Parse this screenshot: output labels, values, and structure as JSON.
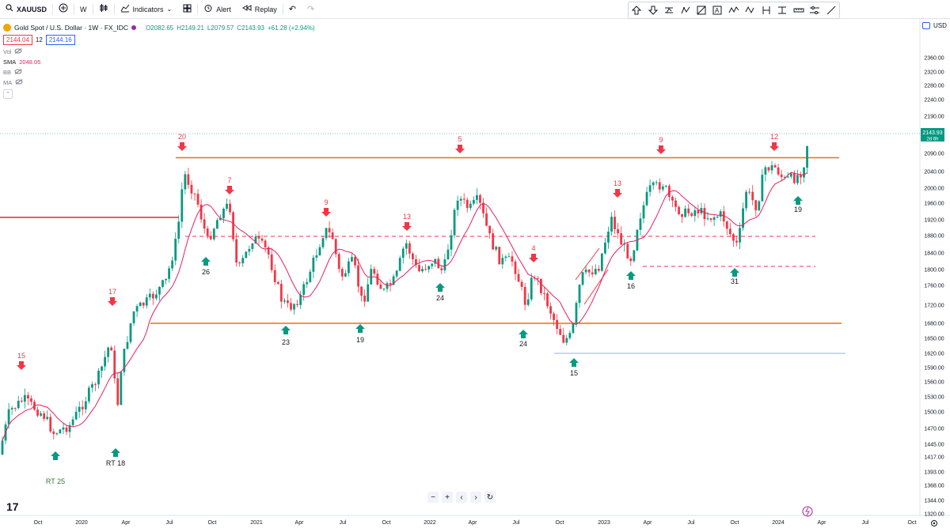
{
  "toolbar": {
    "symbol": "XAUUSD",
    "interval": "W",
    "indicators_label": "Indicators",
    "alert_label": "Alert",
    "replay_label": "Replay"
  },
  "legend": {
    "title": "Gold Spot / U.S. Dollar · 1W · FX_IDC",
    "open": "O2082.65",
    "high": "H2149.21",
    "low": "L2079.57",
    "close": "C2143.93",
    "change": "+61.28 (+2.94%)",
    "bid": "2144.04",
    "spread": "12",
    "ask": "2144.16",
    "indicators": [
      {
        "name": "Vol",
        "value": ""
      },
      {
        "name": "SMA",
        "value": "2048.05"
      },
      {
        "name": "BB",
        "value": ""
      },
      {
        "name": "MA",
        "value": ""
      }
    ]
  },
  "currency": "USD",
  "price_tag": {
    "value": "2143.93",
    "countdown": "2d 6h"
  },
  "price_axis": [
    "2360.00",
    "2320.00",
    "2280.00",
    "2240.00",
    "2190.00",
    "2140.00",
    "2090.00",
    "2040.00",
    "2000.00",
    "1960.00",
    "1920.00",
    "1880.00",
    "1840.00",
    "1800.00",
    "1760.00",
    "1720.00",
    "1680.00",
    "1650.00",
    "1620.00",
    "1590.00",
    "1560.00",
    "1530.00",
    "1500.00",
    "1470.00",
    "1445.00",
    "1417.00",
    "1393.00",
    "1368.00",
    "1344.00",
    "1320.00"
  ],
  "time_axis": [
    "Oct",
    "2020",
    "Apr",
    "Jul",
    "Oct",
    "2021",
    "Apr",
    "Jul",
    "Oct",
    "2022",
    "Apr",
    "Jul",
    "Oct",
    "2023",
    "Apr",
    "Jul",
    "Oct",
    "2024",
    "Apr",
    "Jul",
    "Oct"
  ],
  "down_labels": [
    "15",
    "17",
    "20",
    "7",
    "9",
    "13",
    "5",
    "4",
    "13",
    "9",
    "12"
  ],
  "up_labels": [
    "RT 25",
    "RT 18",
    "26",
    "23",
    "19",
    "24",
    "24",
    "15",
    "16",
    "31",
    "19"
  ],
  "colors": {
    "up": "#089981",
    "down": "#f23645",
    "sma": "#e91e63",
    "level": "#ff6d00",
    "redline": "#d32f2f",
    "blueline": "#90b4d4"
  }
}
